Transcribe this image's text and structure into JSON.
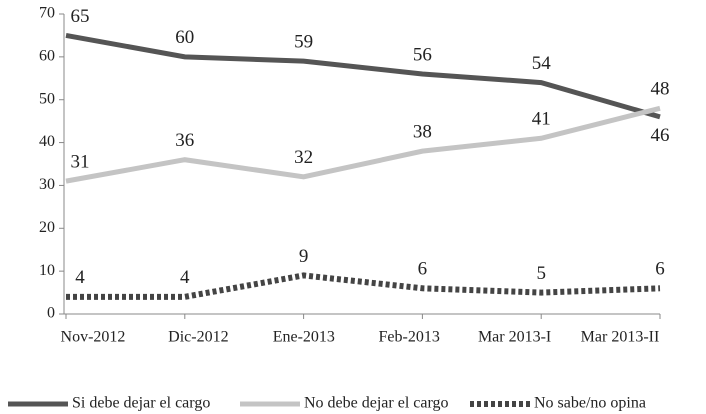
{
  "chart_data": {
    "type": "line",
    "categories": [
      "Nov-2012",
      "Dic-2012",
      "Ene-2013",
      "Feb-2013",
      "Mar 2013-I",
      "Mar 2013-II"
    ],
    "series": [
      {
        "name": "Si debe dejar el cargo",
        "color": "#555555",
        "style": "solid",
        "values": [
          65,
          60,
          59,
          56,
          54,
          46
        ]
      },
      {
        "name": "No debe dejar el cargo",
        "color": "#c4c4c4",
        "style": "solid",
        "values": [
          31,
          36,
          32,
          38,
          41,
          48
        ]
      },
      {
        "name": "No sabe/no opina",
        "color": "#444444",
        "style": "dotted",
        "values": [
          4,
          4,
          9,
          6,
          5,
          6
        ]
      }
    ],
    "ylim": [
      0,
      70
    ],
    "yticks": [
      0,
      10,
      20,
      30,
      40,
      50,
      60,
      70
    ],
    "grid": false,
    "legend": "bottom"
  }
}
